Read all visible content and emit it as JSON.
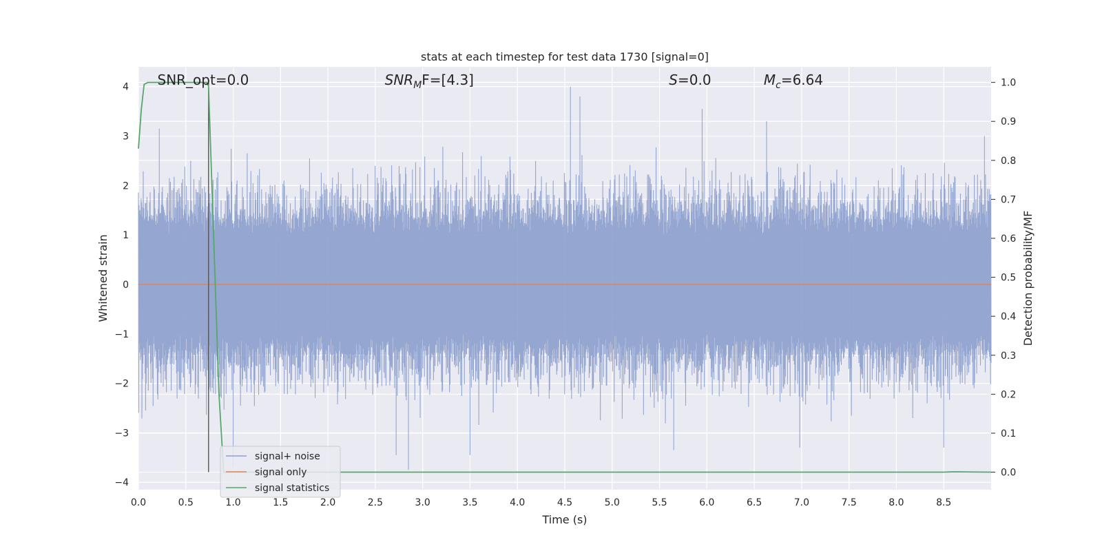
{
  "chart_data": {
    "type": "line",
    "title": "stats at each timestep for test data 1730 [signal=0]",
    "xlabel": "Time (s)",
    "ylabel_left": "Whitened strain",
    "ylabel_right": "Detection probability/MF",
    "xlim": [
      0,
      9
    ],
    "ylim_left": [
      -4.15,
      4.4
    ],
    "ylim_right": [
      -0.045,
      1.04
    ],
    "x_ticks": [
      "0.0",
      "0.5",
      "1.0",
      "1.5",
      "2.0",
      "2.5",
      "3.0",
      "3.5",
      "4.0",
      "4.5",
      "5.0",
      "5.5",
      "6.0",
      "6.5",
      "7.0",
      "7.5",
      "8.0",
      "8.5"
    ],
    "y_ticks_left": [
      "−4",
      "−3",
      "−2",
      "−1",
      "0",
      "1",
      "2",
      "3",
      "4"
    ],
    "y_ticks_right": [
      "0.0",
      "0.1",
      "0.2",
      "0.3",
      "0.4",
      "0.5",
      "0.6",
      "0.7",
      "0.8",
      "0.9",
      "1.0"
    ],
    "grid": true,
    "annotations": [
      {
        "text": "SNR_opt=0.0",
        "x": 0.2
      },
      {
        "text_math": true,
        "base": "SNR",
        "sub": "M",
        "tail": "F=[4.3]",
        "x": 2.6
      },
      {
        "text_math": true,
        "base": "S",
        "sub": "",
        "tail": "=0.0",
        "x": 5.6
      },
      {
        "text_math": true,
        "base": "M",
        "sub": "c",
        "tail": "=6.64",
        "x": 6.6
      }
    ],
    "legend": {
      "placement": "lower-left",
      "entries": [
        "signal+ noise",
        "signal only",
        "signal statistics"
      ]
    },
    "series": [
      {
        "name": "signal+ noise",
        "color": "#8c9fcc",
        "axis": "left",
        "kind": "noise",
        "x_range": [
          0,
          9
        ],
        "core_band": [
          -1.35,
          1.35
        ],
        "typical_peak": 2.4,
        "notable_peaks": [
          [
            0.22,
            3.15
          ],
          [
            4.56,
            4.0
          ],
          [
            4.66,
            3.8
          ],
          [
            5.95,
            3.55
          ],
          [
            6.63,
            3.3
          ],
          [
            8.93,
            3.0
          ],
          [
            2.85,
            -3.75
          ],
          [
            1.0,
            -3.7
          ],
          [
            2.72,
            -3.45
          ],
          [
            5.65,
            -3.35
          ],
          [
            3.5,
            -3.45
          ],
          [
            6.98,
            -3.3
          ],
          [
            8.5,
            -3.3
          ]
        ]
      },
      {
        "name": "signal only",
        "color": "#dd8452",
        "axis": "left",
        "x": [
          0,
          9
        ],
        "y": [
          0,
          0
        ]
      },
      {
        "name": "signal statistics",
        "color": "#55a868",
        "axis": "right",
        "x": [
          0.0,
          0.03,
          0.06,
          0.1,
          0.2,
          0.5,
          0.72,
          0.74,
          0.85,
          0.9,
          1.5,
          8.5,
          8.6,
          9.0
        ],
        "y": [
          0.83,
          0.93,
          0.995,
          1.0,
          1.0,
          1.0,
          1.0,
          0.99,
          0.2,
          0.0,
          0.0,
          0.0,
          0.001,
          0.0
        ]
      }
    ],
    "vertical_marker": {
      "x": 0.74,
      "color": "#555555",
      "y_from": 0,
      "y_to": 1
    }
  }
}
